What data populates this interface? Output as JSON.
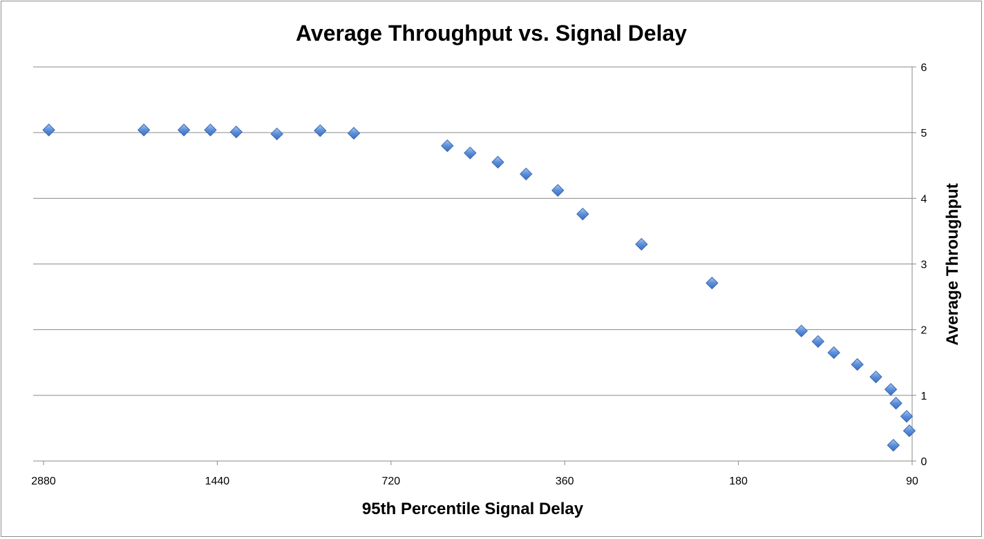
{
  "chart_data": {
    "type": "scatter",
    "title": "Average Throughput vs. Signal Delay",
    "xlabel": "95th Percentile Signal Delay",
    "ylabel": "Average Throughput",
    "x_scale": "log2-reversed",
    "xlim": [
      2880,
      90
    ],
    "ylim": [
      0,
      6
    ],
    "x_ticks": [
      2880,
      1440,
      720,
      360,
      180,
      90
    ],
    "y_ticks": [
      0,
      1,
      2,
      3,
      4,
      5,
      6
    ],
    "y_axis_side": "right",
    "grid": "horizontal",
    "legend": "none",
    "marker": "diamond",
    "marker_color": "#5b8fd9",
    "points": [
      {
        "x": 2820,
        "y": 5.04
      },
      {
        "x": 1930,
        "y": 5.04
      },
      {
        "x": 1645,
        "y": 5.04
      },
      {
        "x": 1480,
        "y": 5.04
      },
      {
        "x": 1335,
        "y": 5.01
      },
      {
        "x": 1135,
        "y": 4.98
      },
      {
        "x": 955,
        "y": 5.03
      },
      {
        "x": 835,
        "y": 4.99
      },
      {
        "x": 575,
        "y": 4.8
      },
      {
        "x": 525,
        "y": 4.69
      },
      {
        "x": 470,
        "y": 4.55
      },
      {
        "x": 420,
        "y": 4.37
      },
      {
        "x": 370,
        "y": 4.12
      },
      {
        "x": 335,
        "y": 3.76
      },
      {
        "x": 265,
        "y": 3.3
      },
      {
        "x": 200,
        "y": 2.71
      },
      {
        "x": 140,
        "y": 1.98
      },
      {
        "x": 131,
        "y": 1.82
      },
      {
        "x": 123,
        "y": 1.65
      },
      {
        "x": 112,
        "y": 1.47
      },
      {
        "x": 104,
        "y": 1.28
      },
      {
        "x": 98,
        "y": 1.09
      },
      {
        "x": 96,
        "y": 0.88
      },
      {
        "x": 97,
        "y": 0.24
      },
      {
        "x": 92,
        "y": 0.68
      },
      {
        "x": 91,
        "y": 0.46
      }
    ]
  }
}
